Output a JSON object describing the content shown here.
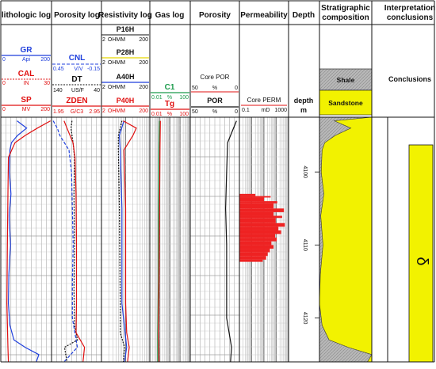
{
  "colors": {
    "gr": "#1f3fdc",
    "cal": "#e01010",
    "sp": "#e01010",
    "cnl": "#1f3fdc",
    "dt": "#111111",
    "zden": "#e01010",
    "p16h": "#111111",
    "p28h": "#e8d800",
    "a40h": "#1f3fdc",
    "p40h": "#e01010",
    "c1": "#1a9a4a",
    "tg": "#e01010",
    "por": "#111111",
    "perm": "#ee2222",
    "shale": "#b8b8b8",
    "sandstone": "#f2f200",
    "conclusion_fill": "#f2f200"
  },
  "headers": {
    "lithologic": "lithologic log",
    "porosity_log": "Porosity log",
    "resistivity": "Resistivity log",
    "gas": "Gas log",
    "porosity": "Porosity",
    "permeability": "Permeability",
    "depth": "Depth",
    "strat_line1": "Stratigraphic",
    "strat_line2": "composition",
    "interp_line1": "Interpretation",
    "interp_line2": "conclusions"
  },
  "lithologic": {
    "gr": {
      "name": "GR",
      "unit": "Api",
      "min": "0",
      "max": "200"
    },
    "cal": {
      "name": "CAL",
      "unit": "IN",
      "min": "0",
      "max": "30"
    },
    "sp": {
      "name": "SP",
      "unit": "MV",
      "min": "0",
      "max": "200"
    }
  },
  "porosity_log": {
    "cnl": {
      "name": "CNL",
      "unit": "V/V",
      "min": "0.45",
      "max": "-0.15"
    },
    "dt": {
      "name": "DT",
      "unit": "US/F",
      "min": "140",
      "max": "40"
    },
    "zden": {
      "name": "ZDEN",
      "unit": "G/C3",
      "min": "1.95",
      "max": "2.95"
    }
  },
  "resistivity": {
    "p16h": {
      "name": "P16H",
      "unit": "OHMM",
      "min": "2",
      "max": "200"
    },
    "p28h": {
      "name": "P28H",
      "unit": "OHMM",
      "min": "2",
      "max": "200"
    },
    "a40h": {
      "name": "A40H",
      "unit": "OHMM",
      "min": "2",
      "max": "200"
    },
    "p40h": {
      "name": "P40H",
      "unit": "OHMM",
      "min": "2",
      "max": "200"
    }
  },
  "gas": {
    "c1": {
      "name": "C1",
      "unit": "%",
      "min": "0.01",
      "max": "100"
    },
    "tg": {
      "name": "Tg",
      "unit": "%",
      "min": "0.01",
      "max": "100"
    }
  },
  "porosity": {
    "core": {
      "name": "Core POR",
      "unit": "%",
      "min": "50",
      "max": "0"
    },
    "por": {
      "name": "POR",
      "unit": "%",
      "min": "50",
      "max": "0"
    }
  },
  "permeability": {
    "core": {
      "name": "Core PERM",
      "unit": "mD",
      "min": "0.1",
      "max": "1000"
    }
  },
  "depth": {
    "label": "depth",
    "unit": "m",
    "ticks": [
      "4100",
      "4110",
      "4120"
    ]
  },
  "strat": {
    "shale": "Shale",
    "sandstone": "Sandstone"
  },
  "interp": {
    "label": "Conclusions",
    "symbol": "δ"
  },
  "chart_data": {
    "type": "line",
    "x_axis": "depth (m)",
    "depth_range": [
      4092.5,
      4126
    ],
    "tracks": [
      {
        "track": "lithologic log",
        "series": [
          {
            "name": "GR",
            "points": [
              [
                4093,
                64
              ],
              [
                4094,
                102
              ],
              [
                4095,
                66
              ],
              [
                4096,
                42
              ],
              [
                4097,
                36
              ],
              [
                4100,
                34
              ],
              [
                4103,
                40
              ],
              [
                4106,
                33
              ],
              [
                4110,
                38
              ],
              [
                4114,
                32
              ],
              [
                4118,
                30
              ],
              [
                4121,
                36
              ],
              [
                4123,
                52
              ],
              [
                4124,
                96
              ],
              [
                4125,
                150
              ],
              [
                4126,
                140
              ]
            ]
          },
          {
            "name": "SP",
            "points": [
              [
                4093,
                196
              ],
              [
                4094,
                144
              ],
              [
                4095,
                96
              ],
              [
                4096,
                56
              ],
              [
                4098,
                30
              ],
              [
                4103,
                28
              ],
              [
                4110,
                26
              ],
              [
                4118,
                24
              ],
              [
                4124,
                28
              ],
              [
                4126,
                30
              ]
            ]
          }
        ]
      },
      {
        "track": "Porosity log",
        "series": [
          {
            "name": "CNL",
            "points": [
              [
                4093,
                0.43
              ],
              [
                4094,
                0.38
              ],
              [
                4095,
                0.35
              ],
              [
                4097,
                0.24
              ],
              [
                4100,
                0.21
              ],
              [
                4105,
                0.2
              ],
              [
                4110,
                0.19
              ],
              [
                4115,
                0.2
              ],
              [
                4120,
                0.2
              ],
              [
                4124,
                0.14
              ],
              [
                4126,
                0.3
              ]
            ]
          },
          {
            "name": "DT",
            "points": [
              [
                4093,
                99
              ],
              [
                4094,
                101
              ],
              [
                4096,
                97
              ],
              [
                4098,
                94
              ],
              [
                4103,
                95
              ],
              [
                4110,
                94
              ],
              [
                4116,
                95
              ],
              [
                4121,
                94
              ],
              [
                4123,
                88
              ],
              [
                4124,
                114
              ],
              [
                4126,
                109
              ]
            ]
          },
          {
            "name": "ZDEN",
            "points": [
              [
                4093,
                2.2
              ],
              [
                4094,
                2.26
              ],
              [
                4096,
                2.38
              ],
              [
                4098,
                2.42
              ],
              [
                4103,
                2.44
              ],
              [
                4110,
                2.45
              ],
              [
                4118,
                2.45
              ],
              [
                4122,
                2.44
              ],
              [
                4124,
                2.61
              ],
              [
                4126,
                2.58
              ]
            ]
          }
        ]
      },
      {
        "track": "Resistivity log",
        "series": [
          {
            "name": "P16H",
            "points": [
              [
                4093,
                14
              ],
              [
                4095,
                10
              ],
              [
                4097,
                10
              ],
              [
                4105,
                11
              ],
              [
                4118,
                12
              ],
              [
                4122,
                12
              ],
              [
                4124,
                18
              ],
              [
                4126,
                16
              ]
            ]
          },
          {
            "name": "A40H",
            "points": [
              [
                4093,
                17
              ],
              [
                4095,
                11
              ],
              [
                4097,
                12
              ],
              [
                4105,
                14
              ],
              [
                4118,
                14
              ],
              [
                4124,
                22
              ],
              [
                4126,
                18
              ]
            ]
          },
          {
            "name": "P40H",
            "points": [
              [
                4093,
                16
              ],
              [
                4094,
                55
              ],
              [
                4095,
                40
              ],
              [
                4097,
                17
              ],
              [
                4105,
                20
              ],
              [
                4118,
                20
              ],
              [
                4122,
                22
              ],
              [
                4124,
                28
              ],
              [
                4126,
                24
              ]
            ]
          }
        ]
      },
      {
        "track": "Gas log",
        "series": [
          {
            "name": "C1",
            "points": [
              [
                4093,
                0.09
              ],
              [
                4097,
                0.08
              ],
              [
                4105,
                0.07
              ],
              [
                4115,
                0.07
              ],
              [
                4122,
                0.06
              ],
              [
                4126,
                0.06
              ]
            ]
          },
          {
            "name": "Tg",
            "points": [
              [
                4093,
                0.11
              ],
              [
                4097,
                0.1
              ],
              [
                4105,
                0.09
              ],
              [
                4115,
                0.08
              ],
              [
                4122,
                0.07
              ],
              [
                4126,
                0.08
              ]
            ]
          }
        ]
      },
      {
        "track": "Porosity",
        "series": [
          {
            "name": "POR",
            "points": [
              [
                4093,
                3
              ],
              [
                4096,
                12
              ],
              [
                4100,
                13
              ],
              [
                4105,
                14
              ],
              [
                4110,
                13
              ],
              [
                4115,
                13
              ],
              [
                4120,
                13
              ],
              [
                4124,
                8
              ],
              [
                4126,
                9
              ]
            ]
          }
        ]
      },
      {
        "track": "Permeability",
        "series": [
          {
            "name": "Core PERM",
            "points": [
              [
                4103,
                2
              ],
              [
                4103.3,
                35
              ],
              [
                4103.5,
                10
              ],
              [
                4104,
                120
              ],
              [
                4104.3,
                60
              ],
              [
                4105,
                420
              ],
              [
                4105.5,
                60
              ],
              [
                4106,
                300
              ],
              [
                4106.3,
                90
              ],
              [
                4107,
                500
              ],
              [
                4107.5,
                150
              ],
              [
                4108,
                250
              ],
              [
                4108.5,
                80
              ],
              [
                4109,
                110
              ],
              [
                4109.5,
                40
              ],
              [
                4110,
                60
              ],
              [
                4110.5,
                30
              ],
              [
                4111,
                20
              ],
              [
                4111.5,
                15
              ],
              [
                4112,
                8
              ]
            ]
          }
        ]
      }
    ]
  }
}
